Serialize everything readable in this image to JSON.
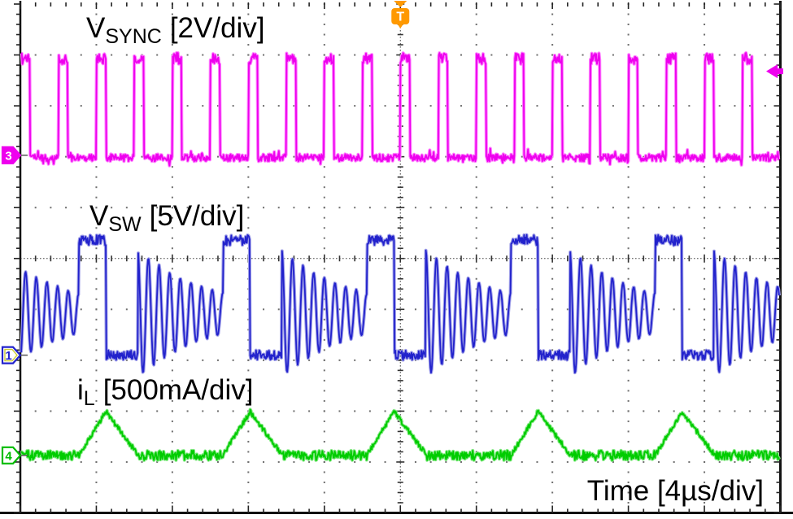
{
  "labels": {
    "vsync": {
      "base": "V",
      "sub": "SYNC",
      "scale": "[2V/div]"
    },
    "vsw": {
      "base": "V",
      "sub": "SW",
      "scale": "[5V/div]"
    },
    "il": {
      "base": "i",
      "sub": "L",
      "scale": "[500mA/div]"
    },
    "time": "Time [4µs/div]"
  },
  "markers": {
    "trigger_top": {
      "label": "T",
      "color": "#ff9900"
    },
    "channel_3": {
      "label": "3",
      "color": "#ee00ee",
      "style": "filled"
    },
    "channel_1": {
      "label": "1",
      "color": "#2222cc",
      "style": "outline",
      "accent": "#cccc33"
    },
    "channel_4": {
      "label": "4",
      "color": "#00bb00",
      "style": "outline"
    },
    "trigger_level": {
      "color": "#ee00ee",
      "channel": 3
    }
  },
  "chart_data": {
    "type": "line",
    "title": "",
    "xlabel": "Time [4µs/div]",
    "x_divisions": 10,
    "y_divisions": 10,
    "time_per_div_us": 4,
    "grid": "dotted division lines with ticked center crosshair",
    "trigger": {
      "position_us": 20.0,
      "source_channel": 3,
      "level_V": 3.4
    },
    "series": [
      {
        "name": "V_SYNC",
        "channel": 3,
        "label": "V_SYNC [2V/div]",
        "color": "#ee00ee",
        "fringe": "#ff80ff",
        "volts_per_div": 2,
        "shape": "pulse-train",
        "period_us": 2.0,
        "pulse_width_us": 0.5,
        "first_rising_edge_us": 0.0,
        "low_V": 0,
        "high_V": 3.9,
        "zero_div_from_bottom": 6.98
      },
      {
        "name": "V_SW",
        "channel": 1,
        "label": "V_SW [5V/div]",
        "color": "#2222cc",
        "fringe": "#9f9fe8",
        "volts_per_div": 5,
        "shape": "buck-switch-node-dcm",
        "period_us": 7.58,
        "on_time_us": 1.43,
        "off_time_us": 1.67,
        "first_pulse_start_us": 3.08,
        "high_V": 11.3,
        "ring_mid_V": 4.1,
        "ring_amplitude0_V": 6.25,
        "ring_period_us": 0.56,
        "ring_decay_tau_us": 3.9,
        "zero_div_from_bottom": 3.1
      },
      {
        "name": "i_L",
        "channel": 4,
        "label": "i_L [500mA/div]",
        "color": "#00cc00",
        "fringe": "#7fe87f",
        "amps_per_div": 0.5,
        "shape": "triangle-burst",
        "period_us": 7.58,
        "ramp_start_us": 3.08,
        "rise_time_us": 1.43,
        "fall_time_us": 1.72,
        "base_A": 0,
        "peak_A": 0.43,
        "zero_div_from_bottom": 1.13
      }
    ]
  }
}
